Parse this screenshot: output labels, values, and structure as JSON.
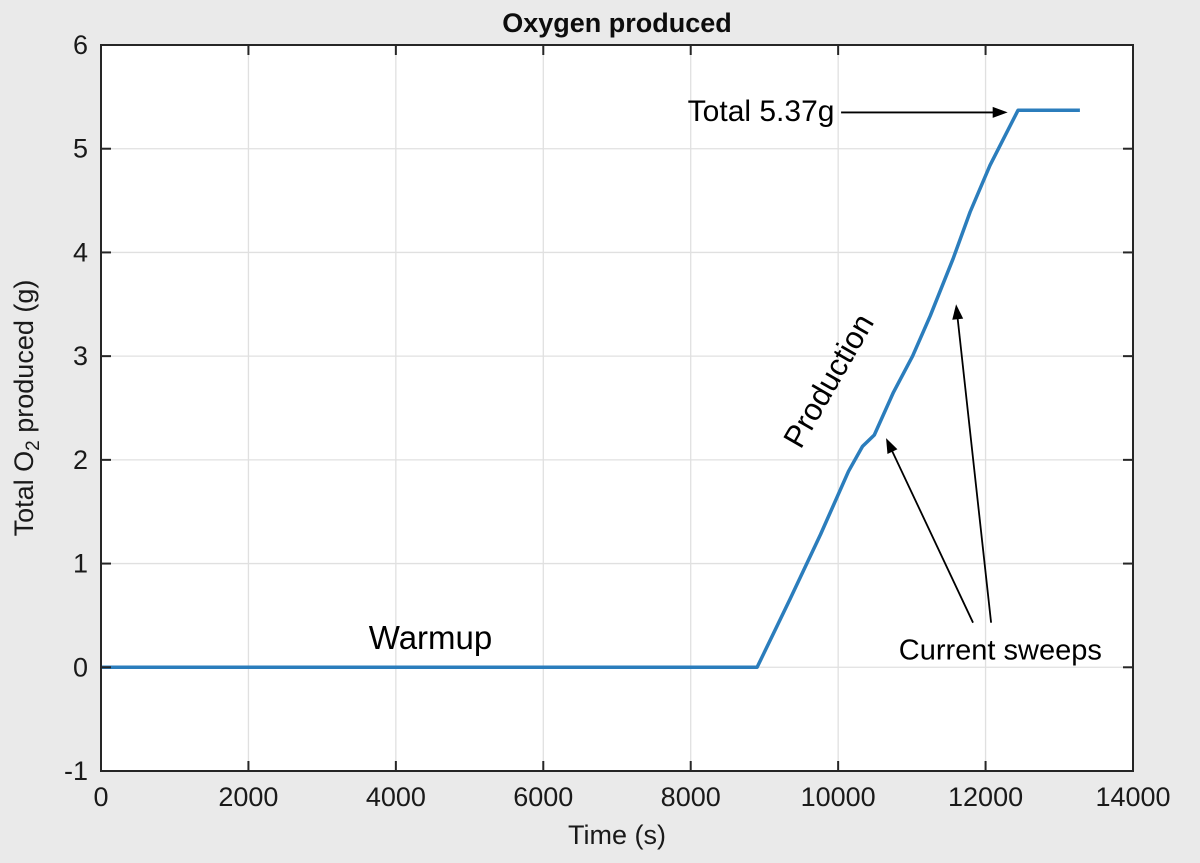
{
  "chart_data": {
    "type": "line",
    "title": "Oxygen produced",
    "xlabel": "Time (s)",
    "ylabel": "Total O_2 produced (g)",
    "ylabel_parts": {
      "pre": "Total O",
      "sub": "2",
      "post": " produced (g)"
    },
    "xlim": [
      0,
      14000
    ],
    "ylim": [
      -1,
      6
    ],
    "xticks": [
      0,
      2000,
      4000,
      6000,
      8000,
      10000,
      12000,
      14000
    ],
    "yticks": [
      -1,
      0,
      1,
      2,
      3,
      4,
      5,
      6
    ],
    "grid": true,
    "series": [
      {
        "name": "total-o2-produced",
        "color": "#2b7dbc",
        "points": [
          [
            0,
            0
          ],
          [
            8900,
            0
          ],
          [
            9350,
            0.66
          ],
          [
            9760,
            1.28
          ],
          [
            10140,
            1.89
          ],
          [
            10330,
            2.13
          ],
          [
            10490,
            2.24
          ],
          [
            10750,
            2.65
          ],
          [
            11010,
            3.0
          ],
          [
            11250,
            3.39
          ],
          [
            11560,
            3.94
          ],
          [
            11790,
            4.39
          ],
          [
            12060,
            4.84
          ],
          [
            12440,
            5.37
          ],
          [
            13280,
            5.37
          ]
        ]
      }
    ],
    "annotations": [
      {
        "name": "warmup-label",
        "text": "Warmup",
        "t": 4470,
        "v": 0.28,
        "align": "center",
        "rotation": 0
      },
      {
        "name": "production-label",
        "text": "Production",
        "t": 9880,
        "v": 2.76,
        "align": "center",
        "rotation": -60
      },
      {
        "name": "total-label",
        "text": "Total 5.37g",
        "t": 9950,
        "v": 5.35,
        "align": "right",
        "rotation": 0
      },
      {
        "name": "current-sweeps-label",
        "text": "Current sweeps",
        "t": 12200,
        "v": 0.16,
        "align": "center",
        "rotation": 0
      }
    ],
    "arrows": [
      {
        "name": "total-arrow",
        "from": [
          10040,
          5.35
        ],
        "to": [
          12300,
          5.35
        ]
      },
      {
        "name": "current-sweep-arrow-1",
        "from": [
          11830,
          0.43
        ],
        "to": [
          10650,
          2.21
        ]
      },
      {
        "name": "current-sweep-arrow-2",
        "from": [
          12075,
          0.43
        ],
        "to": [
          11600,
          3.5
        ]
      }
    ],
    "colors": {
      "line": "#2b7dbc",
      "grid": "#e0e0e0",
      "axis": "#262626",
      "background": "#eaeaea",
      "plot_background": "#ffffff",
      "text": "#1a1a1a"
    }
  }
}
